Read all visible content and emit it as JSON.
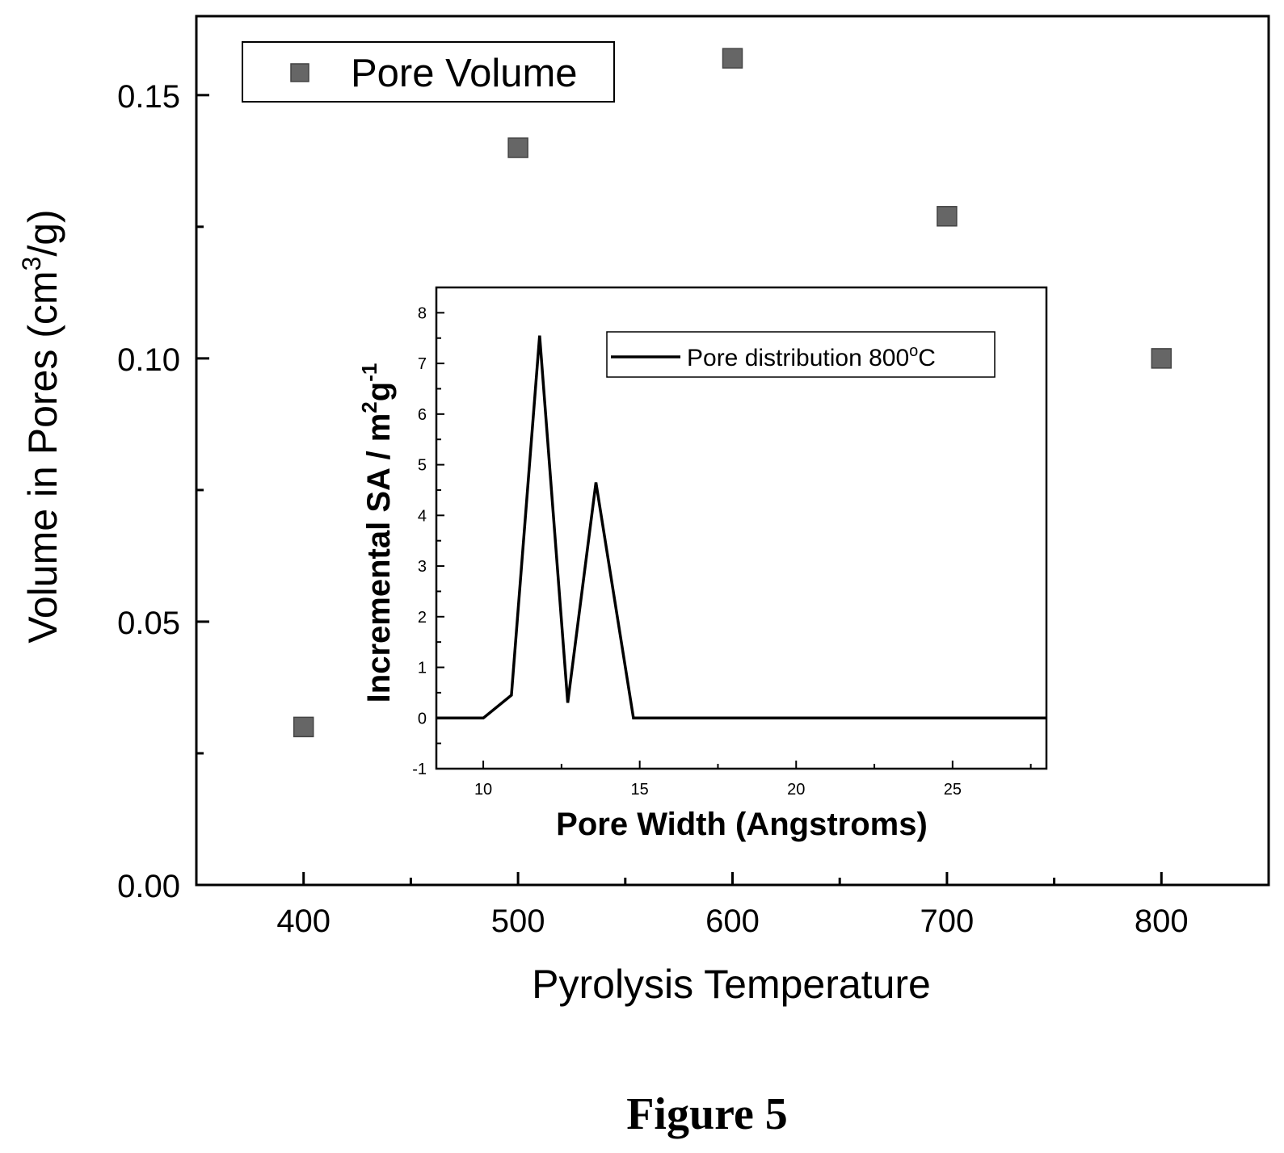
{
  "chart_data": [
    {
      "type": "scatter",
      "xlabel": "Pyrolysis Temperature",
      "ylabel": "Volume in Pores (cm",
      "ylabel_sup": "3",
      "ylabel_tail": "/g)",
      "xlim": [
        350,
        850
      ],
      "ylim": [
        0.0,
        0.165
      ],
      "x_ticks": [
        400,
        500,
        600,
        700,
        800
      ],
      "x_minor_ticks": [
        450,
        550,
        650,
        750
      ],
      "y_ticks": [
        0.0,
        0.05,
        0.1,
        0.15
      ],
      "y_tick_labels": [
        "0.00",
        "0.05",
        "0.10",
        "0.15"
      ],
      "y_minor_ticks": [
        0.025,
        0.075,
        0.125
      ],
      "legend": {
        "label": "Pore Volume",
        "position": "top-left"
      },
      "grid": false,
      "marker_color": "#666666",
      "series": [
        {
          "name": "Pore Volume",
          "x": [
            400,
            500,
            600,
            700,
            800
          ],
          "y": [
            0.03,
            0.14,
            0.157,
            0.127,
            0.1
          ]
        }
      ]
    },
    {
      "type": "line",
      "position": "inset",
      "xlabel": "Pore Width (Angstroms)",
      "ylabel": "Incremental SA / m",
      "ylabel_sup1": "2",
      "ylabel_mid": "g",
      "ylabel_sup2": "-1",
      "xlim": [
        8.5,
        28
      ],
      "ylim": [
        -1,
        8.5
      ],
      "x_ticks": [
        10,
        15,
        20,
        25
      ],
      "x_minor_ticks": [
        12.5,
        17.5,
        22.5,
        27.5
      ],
      "y_ticks": [
        -1,
        0,
        1,
        2,
        3,
        4,
        5,
        6,
        7,
        8
      ],
      "y_minor_ticks": [
        -0.5,
        0.5,
        1.5,
        2.5,
        3.5,
        4.5,
        5.5,
        6.5,
        7.5
      ],
      "legend": {
        "label": "Pore distribution 800",
        "deg": "o",
        "unit": "C",
        "position": "top-right"
      },
      "grid": false,
      "line_color": "#000000",
      "series": [
        {
          "name": "Pore distribution 800°C",
          "x": [
            8.5,
            10.0,
            10.9,
            11.8,
            12.7,
            13.6,
            14.8,
            28.0
          ],
          "y": [
            0,
            0,
            0.45,
            7.55,
            0.3,
            4.65,
            0,
            0
          ]
        }
      ]
    }
  ],
  "caption": "Figure 5"
}
